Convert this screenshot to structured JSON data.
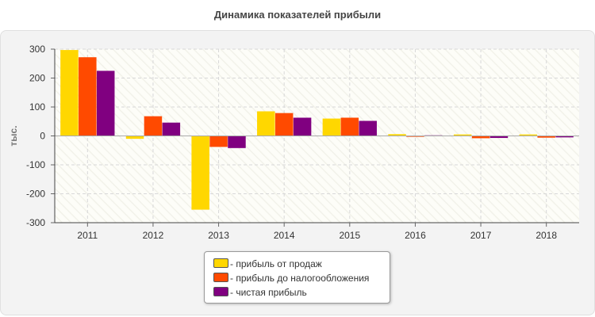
{
  "chart_data": {
    "type": "bar",
    "title": "Динамика показателей прибыли",
    "ylabel": "тыс.",
    "xlabel": "",
    "categories": [
      "2011",
      "2012",
      "2013",
      "2014",
      "2015",
      "2016",
      "2017",
      "2018"
    ],
    "ylim": [
      -300,
      300
    ],
    "yticks": [
      300,
      200,
      100,
      0,
      -100,
      -200,
      -300
    ],
    "series": [
      {
        "name": "- прибыль от продаж",
        "color": "#FFD700",
        "values": [
          297,
          -10,
          -255,
          85,
          60,
          6,
          5,
          5
        ]
      },
      {
        "name": "- прибыль до налогообложения",
        "color": "#FF4A00",
        "values": [
          272,
          68,
          -38,
          79,
          63,
          -3,
          -8,
          -6
        ]
      },
      {
        "name": "- чистая прибыль",
        "color": "#800080",
        "values": [
          225,
          46,
          -42,
          63,
          52,
          2,
          -7,
          -5
        ]
      }
    ],
    "grid": true,
    "legend_position": "bottom-center"
  }
}
